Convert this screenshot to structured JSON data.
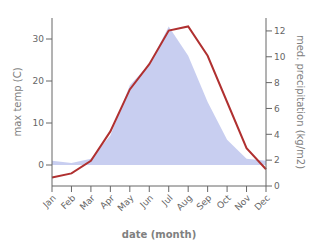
{
  "chart_data": {
    "type": "line",
    "xlabel": "date (month)",
    "ylabel": "max temp (C)",
    "y2label": "med. precipitation (kg/m2)",
    "categories": [
      "Jan",
      "Feb",
      "Mar",
      "Apr",
      "May",
      "Jun",
      "Jul",
      "Aug",
      "Sep",
      "Oct",
      "Nov",
      "Dec"
    ],
    "series": [
      {
        "type": "area",
        "color": "#aab4e8",
        "values": [
          1.0,
          0.5,
          1.5,
          7.0,
          19.0,
          24.0,
          33.0,
          26.0,
          15.0,
          6.0,
          1.5,
          1.0
        ]
      },
      {
        "type": "line",
        "color": "#b03030",
        "values": [
          -3,
          -2,
          1,
          8,
          18,
          24,
          32,
          33,
          26,
          15,
          4,
          -1
        ]
      }
    ],
    "ylim": [
      -5,
      35
    ],
    "yticks": [
      0,
      10,
      20,
      30
    ],
    "y2lim": [
      0,
      13
    ],
    "y2ticks": [
      0,
      2,
      4,
      6,
      8,
      10,
      12
    ],
    "grid": false
  }
}
